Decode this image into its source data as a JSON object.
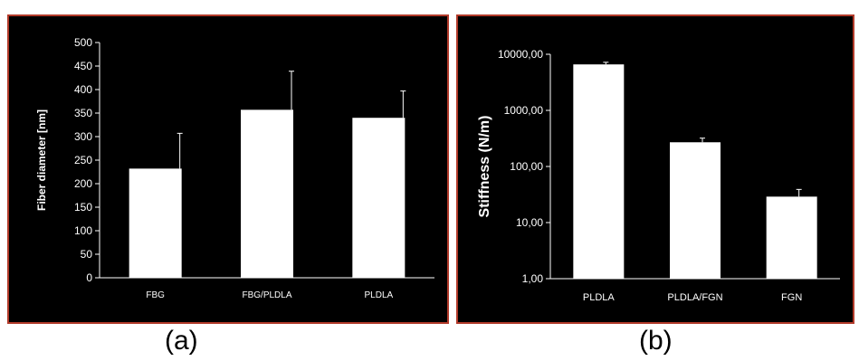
{
  "panels": {
    "a": {
      "caption": "(a)"
    },
    "b": {
      "caption": "(b)"
    }
  },
  "colors": {
    "panel_bg": "#000000",
    "panel_border": "#b23a2a",
    "bar_fill": "#ffffff",
    "text": "#ffffff"
  },
  "chart_data": [
    {
      "type": "bar",
      "title": "",
      "xlabel": "",
      "ylabel": "Fiber diameter [nm]",
      "ylim": [
        0,
        500
      ],
      "yticks": [
        0,
        50,
        100,
        150,
        200,
        250,
        300,
        350,
        400,
        450,
        500
      ],
      "ytick_labels": [
        "0",
        "50",
        "100",
        "150",
        "200",
        "250",
        "300",
        "350",
        "400",
        "450",
        "500"
      ],
      "categories": [
        "FBG",
        "FBG/PLDLA",
        "PLDLA"
      ],
      "values": [
        232,
        357,
        340
      ],
      "errors": [
        75,
        82,
        57
      ],
      "grid": false,
      "legend": "none"
    },
    {
      "type": "bar",
      "title": "",
      "xlabel": "",
      "ylabel": "Stiffness (N/m)",
      "yscale": "log",
      "ylim": [
        1,
        10000
      ],
      "yticks": [
        1,
        10,
        100,
        1000,
        10000
      ],
      "ytick_labels": [
        "1,00",
        "10,00",
        "100,00",
        "1000,00",
        "10000,00"
      ],
      "categories": [
        "PLDLA",
        "PLDLA/FGN",
        "FGN"
      ],
      "values": [
        6600,
        270,
        29
      ],
      "errors": [
        600,
        50,
        10
      ],
      "grid": false,
      "legend": "none"
    }
  ]
}
